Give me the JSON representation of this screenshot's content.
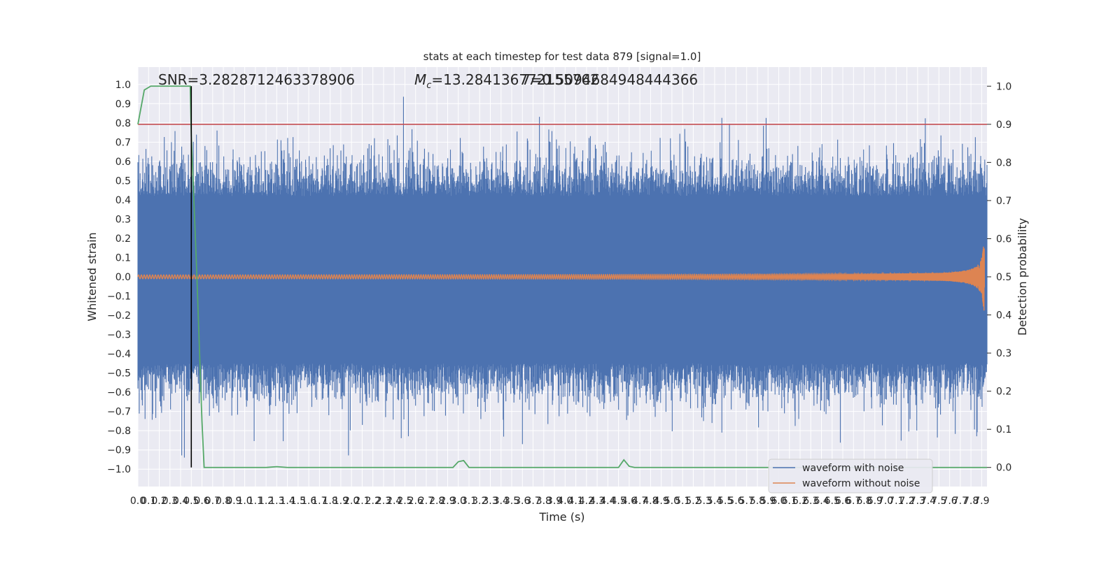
{
  "chart_data": {
    "type": "line",
    "title": "stats at each timestep for test data 879 [signal=1.0]",
    "xlabel": "Time (s)",
    "ylabel_left": "Whitened strain",
    "ylabel_right": "Detection probability",
    "annotations": {
      "snr": "SNR=3.2828712463378906",
      "mc": "=13.284136772155762",
      "mc_symbol": "M",
      "mc_subscript": "c",
      "second_value": "7=0.5094684948444366"
    },
    "xlim": [
      0.0,
      7.95
    ],
    "ylim_left": [
      -1.09,
      1.09
    ],
    "ylim_right": [
      -0.05,
      1.05
    ],
    "grid": true,
    "x_ticks": [
      "0.0",
      "0.1",
      "0.2",
      "0.3",
      "0.4",
      "0.5",
      "0.6",
      "0.7",
      "0.8",
      "0.9",
      "1.0",
      "1.1",
      "1.2",
      "1.3",
      "1.4",
      "1.5",
      "1.6",
      "1.7",
      "1.8",
      "1.9",
      "2.0",
      "2.1",
      "2.2",
      "2.3",
      "2.4",
      "2.5",
      "2.6",
      "2.7",
      "2.8",
      "2.9",
      "3.0",
      "3.1",
      "3.2",
      "3.3",
      "3.4",
      "3.5",
      "3.6",
      "3.7",
      "3.8",
      "3.9",
      "4.0",
      "4.1",
      "4.2",
      "4.3",
      "4.4",
      "4.5",
      "4.6",
      "4.7",
      "4.8",
      "4.9",
      "5.0",
      "5.1",
      "5.2",
      "5.3",
      "5.4",
      "5.5",
      "5.6",
      "5.7",
      "5.8",
      "5.9",
      "6.0",
      "6.1",
      "6.2",
      "6.3",
      "6.4",
      "6.5",
      "6.6",
      "6.7",
      "6.8",
      "6.9",
      "7.0",
      "7.1",
      "7.2",
      "7.3",
      "7.4",
      "7.5",
      "7.6",
      "7.7",
      "7.8",
      "7.9"
    ],
    "y_ticks_left": [
      "−1.0",
      "−0.9",
      "−0.8",
      "−0.7",
      "−0.6",
      "−0.5",
      "−0.4",
      "−0.3",
      "−0.2",
      "−0.1",
      "0.0",
      "0.1",
      "0.2",
      "0.3",
      "0.4",
      "0.5",
      "0.6",
      "0.7",
      "0.8",
      "0.9",
      "1.0"
    ],
    "y_ticks_right": [
      "0.0",
      "0.1",
      "0.2",
      "0.3",
      "0.4",
      "0.5",
      "0.6",
      "0.7",
      "0.8",
      "0.9",
      "1.0"
    ],
    "threshold_right": 0.9,
    "marker_x": 0.5,
    "series": [
      {
        "name": "waveform with noise",
        "color": "#4c72b0",
        "axis": "left",
        "style": "dense-noise",
        "envelope_pos": 0.42,
        "envelope_neg": -0.45,
        "max_peak": 0.98,
        "min_peak": -1.0
      },
      {
        "name": "waveform without noise",
        "color": "#dd8452",
        "axis": "left",
        "style": "chirp",
        "amplitude_start": 0.01,
        "amplitude_end": 0.18,
        "merger_time": 7.93
      },
      {
        "name": "",
        "color": "#55a868",
        "axis": "right",
        "style": "line",
        "points": [
          [
            0.0,
            0.9
          ],
          [
            0.06,
            0.99
          ],
          [
            0.12,
            1.0
          ],
          [
            0.2,
            1.0
          ],
          [
            0.3,
            1.0
          ],
          [
            0.4,
            1.0
          ],
          [
            0.49,
            1.0
          ],
          [
            0.5,
            0.87
          ],
          [
            0.55,
            0.52
          ],
          [
            0.6,
            0.12
          ],
          [
            0.62,
            0.0
          ],
          [
            1.2,
            0.0
          ],
          [
            1.3,
            0.002
          ],
          [
            1.4,
            0.0
          ],
          [
            2.95,
            0.0
          ],
          [
            3.0,
            0.015
          ],
          [
            3.05,
            0.018
          ],
          [
            3.1,
            0.0
          ],
          [
            4.5,
            0.0
          ],
          [
            4.55,
            0.02
          ],
          [
            4.6,
            0.003
          ],
          [
            4.65,
            0.0
          ],
          [
            7.95,
            0.0
          ]
        ]
      }
    ],
    "threshold_color": "#c44e52",
    "marker_color": "#000000",
    "legend_placement": "lower right"
  }
}
